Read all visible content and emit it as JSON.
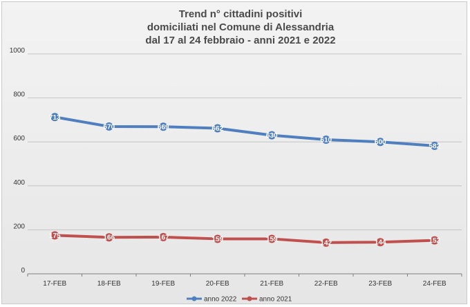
{
  "chart_data": {
    "type": "line",
    "title": [
      "Trend n° cittadini positivi",
      "domiciliati nel Comune di Alessandria",
      "dal 17 al 24 febbraio - anni 2021 e 2022"
    ],
    "categories": [
      "17-FEB",
      "18-FEB",
      "19-FEB",
      "20-FEB",
      "21-FEB",
      "22-FEB",
      "23-FEB",
      "24-FEB"
    ],
    "series": [
      {
        "name": "anno 2022",
        "color": "#4f7fbf",
        "values": [
          713,
          670,
          669,
          662,
          630,
          610,
          600,
          582
        ]
      },
      {
        "name": "anno 2021",
        "color": "#c0504d",
        "values": [
          175,
          166,
          167,
          159,
          159,
          142,
          144,
          152
        ]
      }
    ],
    "ylim": [
      0,
      1000
    ],
    "yticks": [
      "0",
      "200",
      "400",
      "600",
      "800",
      "1000"
    ],
    "grid": true,
    "legend": "bottom"
  }
}
